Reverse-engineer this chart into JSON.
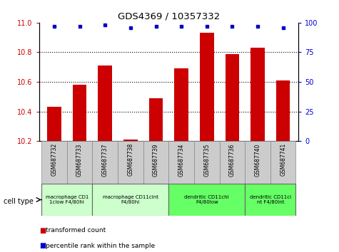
{
  "title": "GDS4369 / 10357332",
  "samples": [
    "GSM687732",
    "GSM687733",
    "GSM687737",
    "GSM687738",
    "GSM687739",
    "GSM687734",
    "GSM687735",
    "GSM687736",
    "GSM687740",
    "GSM687741"
  ],
  "red_values": [
    10.43,
    10.58,
    10.71,
    10.21,
    10.49,
    10.69,
    10.93,
    10.79,
    10.83,
    10.61
  ],
  "blue_values": [
    97,
    97,
    98,
    96,
    97,
    97,
    97,
    97,
    97,
    96
  ],
  "ylim_left": [
    10.2,
    11.0
  ],
  "ylim_right": [
    0,
    100
  ],
  "yticks_left": [
    10.2,
    10.4,
    10.6,
    10.8,
    11.0
  ],
  "yticks_right": [
    0,
    25,
    50,
    75,
    100
  ],
  "cell_groups": [
    {
      "label": "macrophage CD1\n1clow F4/80hi",
      "start": 0,
      "end": 2,
      "color": "#ccffcc"
    },
    {
      "label": "macrophage CD11cint\nF4/80hi",
      "start": 2,
      "end": 5,
      "color": "#ccffcc"
    },
    {
      "label": "dendritic CD11chi\nF4/80low",
      "start": 5,
      "end": 8,
      "color": "#66ff66"
    },
    {
      "label": "dendritic CD11ci\nnt F4/80int",
      "start": 8,
      "end": 10,
      "color": "#66ff66"
    }
  ],
  "bar_color": "#cc0000",
  "dot_color": "#0000cc",
  "tick_color_left": "#cc0000",
  "tick_color_right": "#0000cc",
  "background_color": "#ffffff",
  "sample_bg_color": "#cccccc"
}
